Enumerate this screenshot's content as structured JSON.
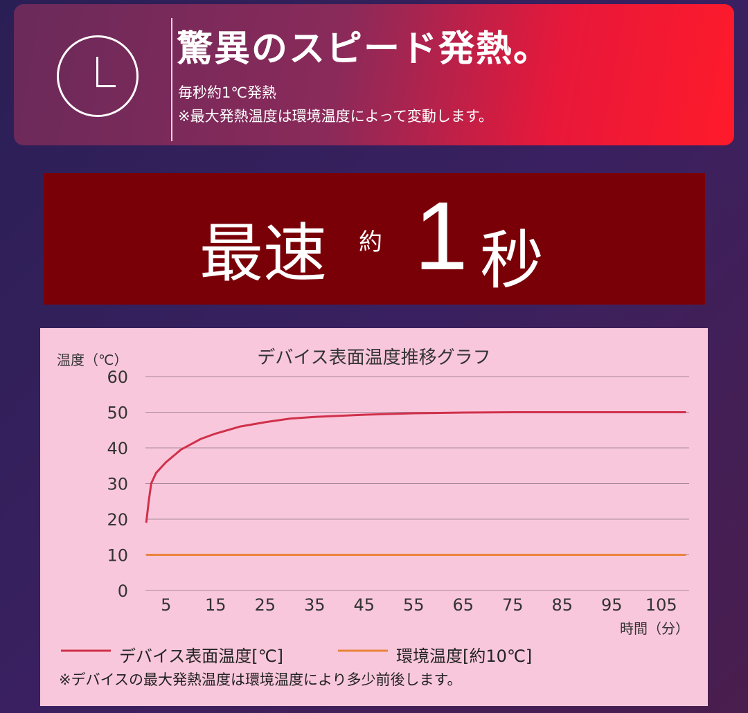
{
  "header": {
    "icon": "clock-icon",
    "title": "驚異のスピード発熱。",
    "subtitle": "毎秒約1℃発熱",
    "note": "※最大発熱温度は環境温度によって変動します。"
  },
  "speed": {
    "prefix": "最速",
    "approx": "約",
    "value": "1",
    "unit": "秒"
  },
  "chart_data": {
    "type": "line",
    "title": "デバイス表面温度推移グラフ",
    "ylabel": "温度（℃）",
    "xlabel": "時間（分）",
    "ylim": [
      0,
      60
    ],
    "yticks": [
      "0",
      "10",
      "20",
      "30",
      "40",
      "50",
      "60"
    ],
    "xticks": [
      "5",
      "15",
      "25",
      "35",
      "45",
      "55",
      "65",
      "75",
      "85",
      "95",
      "105"
    ],
    "grid": true,
    "legend_position": "bottom",
    "series": [
      {
        "name": "デバイス表面温度[℃]",
        "color": "#d0304a",
        "x": [
          1,
          1.5,
          2,
          3,
          5,
          8,
          12,
          15,
          20,
          25,
          30,
          35,
          45,
          55,
          65,
          75,
          85,
          95,
          105,
          110
        ],
        "y": [
          19,
          25,
          30,
          33,
          36,
          39.5,
          42.5,
          44,
          46,
          47.2,
          48.2,
          48.7,
          49.3,
          49.7,
          49.9,
          50,
          50,
          50,
          50,
          50
        ]
      },
      {
        "name": "環境温度[約10℃]",
        "color": "#e8843a",
        "x": [
          1,
          110
        ],
        "y": [
          10,
          10
        ]
      }
    ],
    "footnote": "※デバイスの最大発熱温度は環境温度により多少前後します。"
  }
}
